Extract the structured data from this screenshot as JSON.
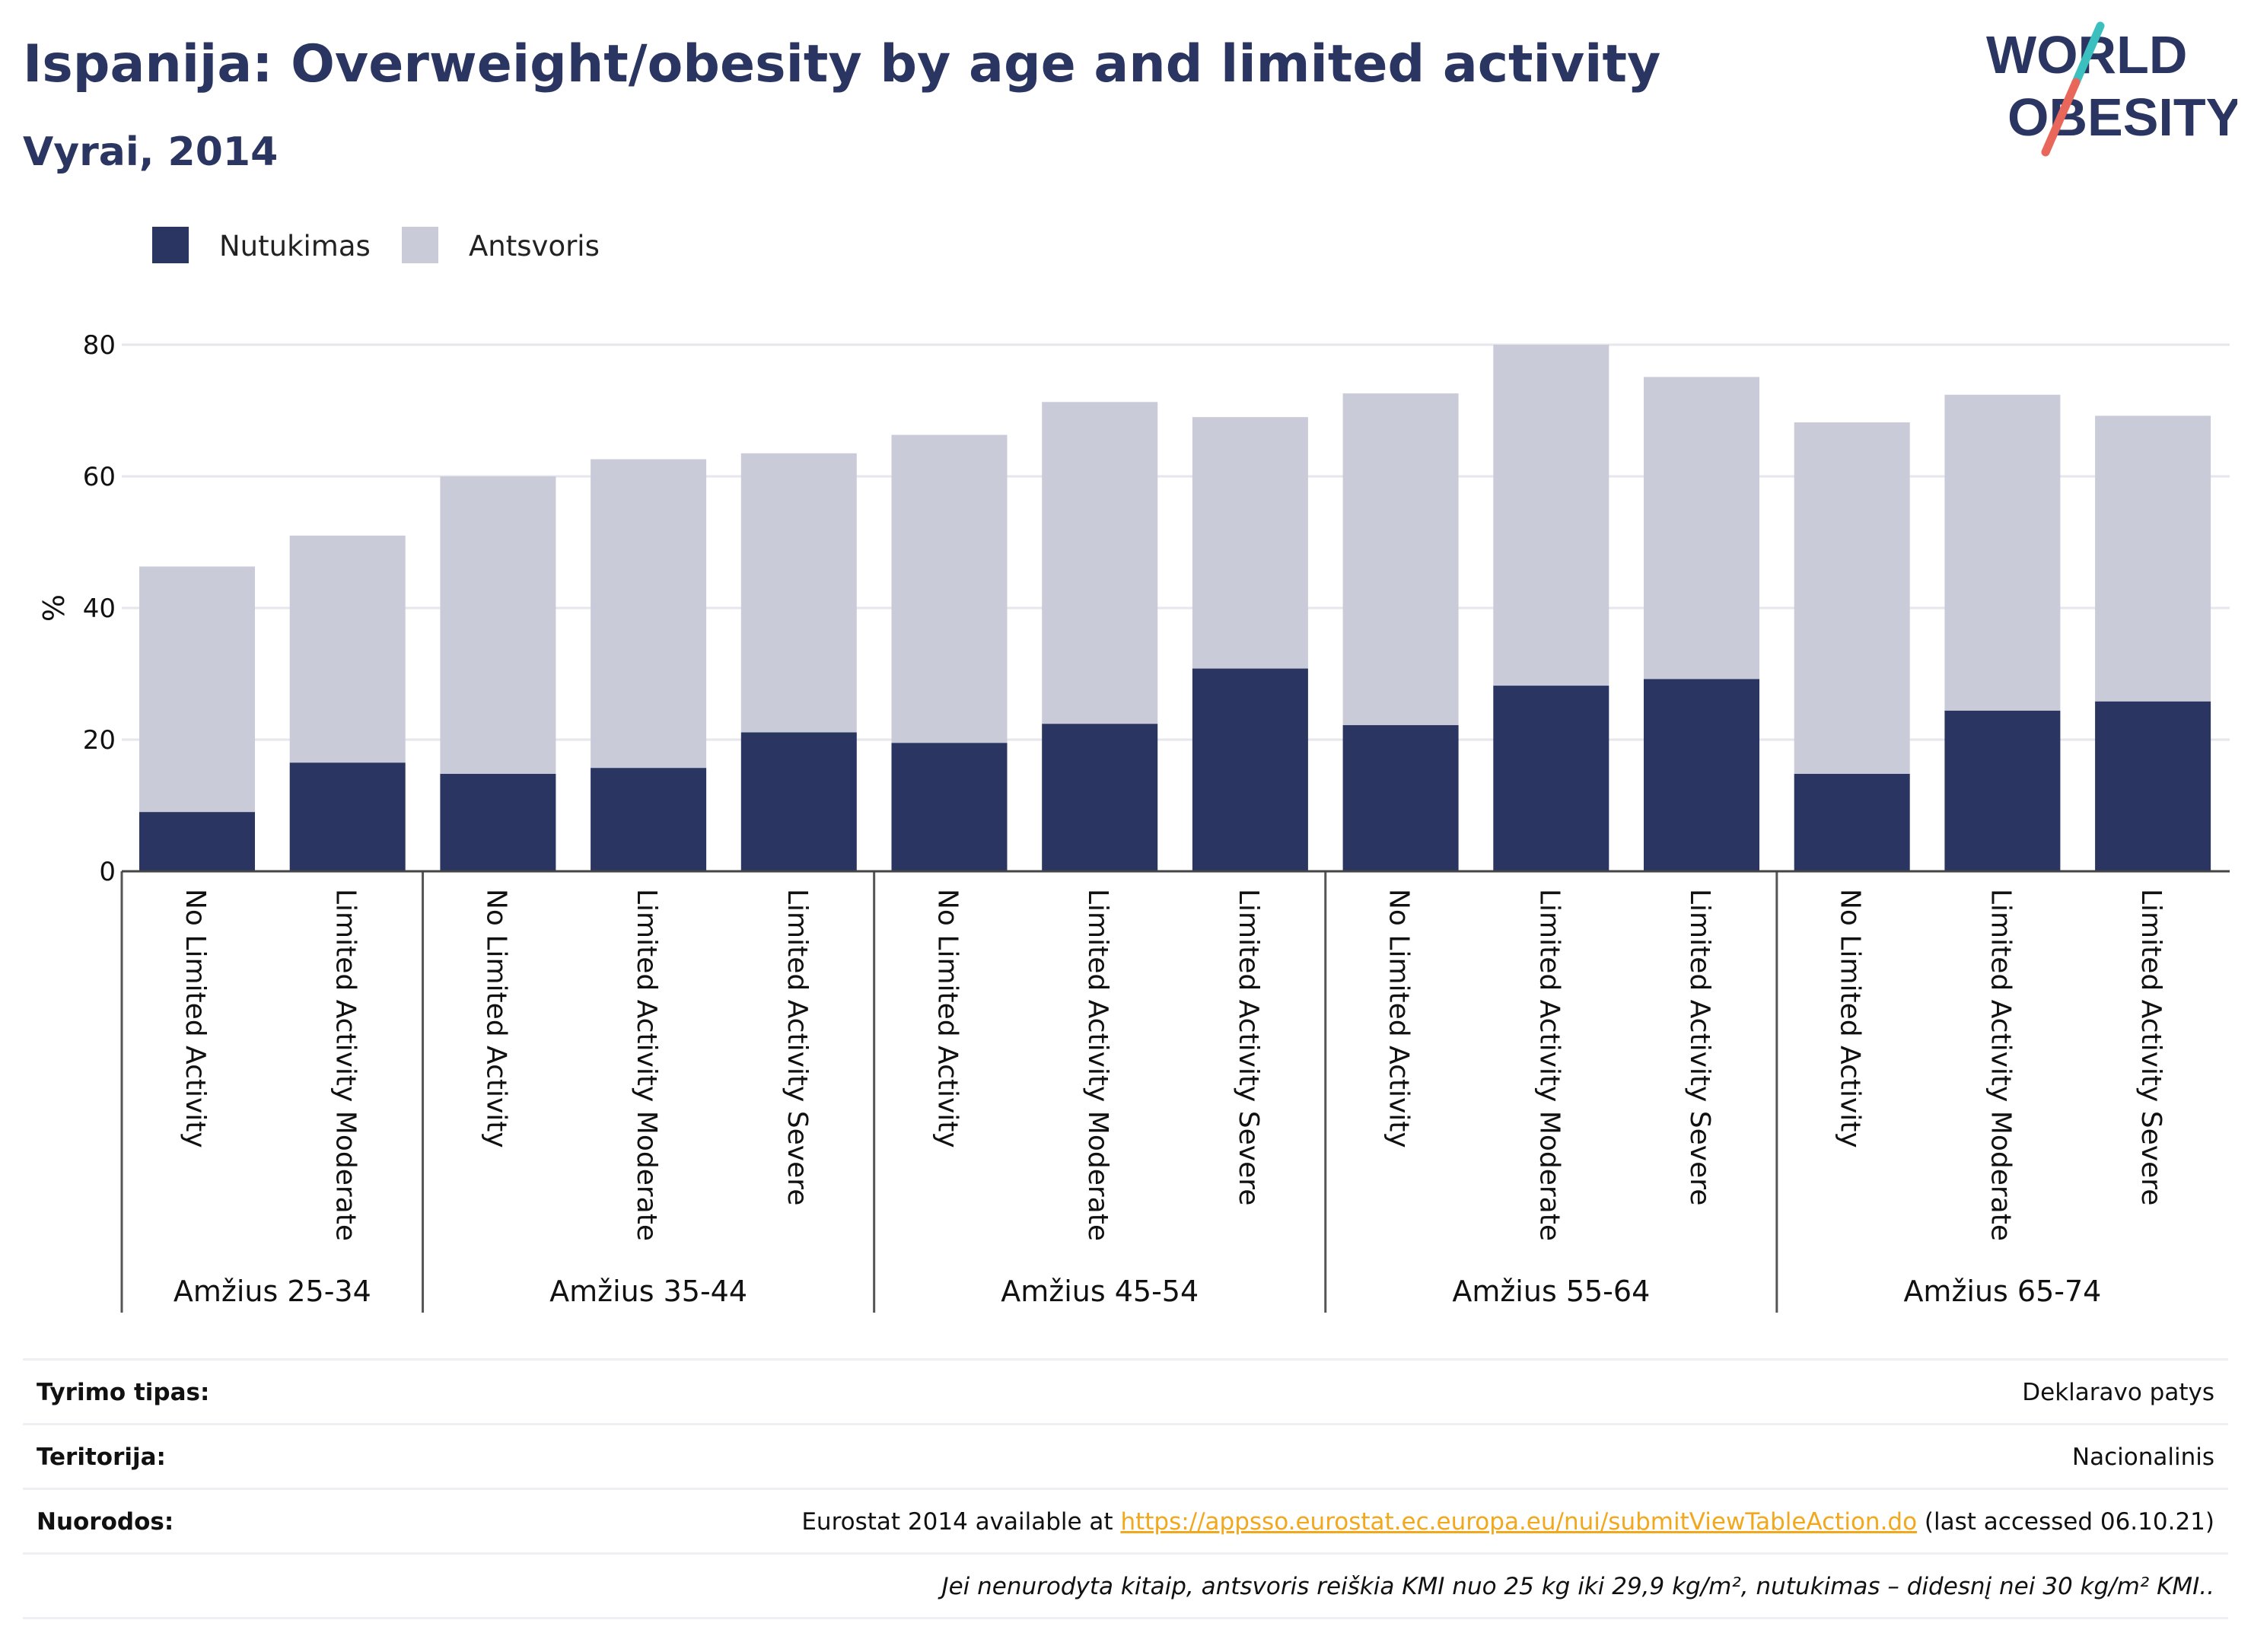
{
  "header": {
    "title": "Ispanija: Overweight/obesity by age and limited activity",
    "subtitle": "Vyrai, 2014"
  },
  "logo": {
    "line1": "WORLD",
    "line2": "OBESITY",
    "accent_colors": [
      "#3bbfbf",
      "#e9675a"
    ],
    "text_color": "#2a3561"
  },
  "legend": {
    "items": [
      {
        "label": "Nutukimas",
        "color": "#2a3561"
      },
      {
        "label": "Antsvoris",
        "color": "#cacbd8"
      }
    ]
  },
  "chart_data": {
    "type": "bar",
    "stacked": true,
    "ylabel": "%",
    "ylim": [
      0,
      80
    ],
    "yticks": [
      0,
      20,
      40,
      60,
      80
    ],
    "grid": true,
    "legend_position": "top-left",
    "groups": [
      {
        "label": "Amžius 25-34",
        "categories": [
          "No Limited Activity",
          "Limited Activity Moderate"
        ]
      },
      {
        "label": "Amžius 35-44",
        "categories": [
          "No Limited Activity",
          "Limited Activity Moderate",
          "Limited Activity Severe"
        ]
      },
      {
        "label": "Amžius 45-54",
        "categories": [
          "No Limited Activity",
          "Limited Activity Moderate",
          "Limited Activity Severe"
        ]
      },
      {
        "label": "Amžius 55-64",
        "categories": [
          "No Limited Activity",
          "Limited Activity Moderate",
          "Limited Activity Severe"
        ]
      },
      {
        "label": "Amžius 65-74",
        "categories": [
          "No Limited Activity",
          "Limited Activity Moderate",
          "Limited Activity Severe"
        ]
      }
    ],
    "series": [
      {
        "name": "Nutukimas",
        "color": "#2a3561",
        "values": [
          9.0,
          16.5,
          14.8,
          15.7,
          21.1,
          19.5,
          22.4,
          30.8,
          22.2,
          28.2,
          29.2,
          14.8,
          24.4,
          25.8
        ]
      },
      {
        "name": "Antsvoris",
        "color": "#cacbd8",
        "values": [
          37.3,
          34.5,
          45.2,
          46.9,
          42.4,
          46.8,
          48.9,
          38.2,
          50.4,
          51.8,
          45.9,
          53.4,
          48.0,
          43.4
        ]
      }
    ]
  },
  "footer": {
    "rows": [
      {
        "label": "Tyrimo tipas:",
        "value": "Deklaravo patys"
      },
      {
        "label": "Teritorija:",
        "value": "Nacionalinis"
      },
      {
        "label": "Nuorodos:",
        "value_prefix": "Eurostat 2014 available at ",
        "link": "https://appsso.eurostat.ec.europa.eu/nui/submitViewTableAction.do",
        "value_suffix": " (last accessed 06.10.21)"
      },
      {
        "label": "",
        "note": "Jei nenurodyta kitaip, antsvoris reiškia KMI nuo 25 kg iki 29,9 kg/m², nutukimas – didesnį nei 30 kg/m² KMI.."
      }
    ]
  }
}
